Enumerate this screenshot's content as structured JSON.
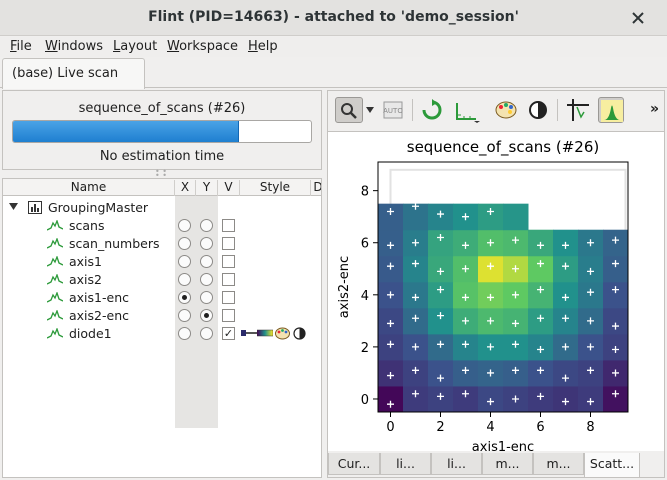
{
  "window": {
    "title": "Flint (PID=14663) - attached to 'demo_session'"
  },
  "menu": [
    {
      "label": "File",
      "u": "F",
      "rest": "ile"
    },
    {
      "label": "Windows",
      "u": "W",
      "rest": "indows"
    },
    {
      "label": "Layout",
      "u": "L",
      "rest": "ayout"
    },
    {
      "label": "Workspace",
      "u": "W",
      "rest": "orkspace"
    },
    {
      "label": "Help",
      "u": "H",
      "rest": "elp"
    }
  ],
  "main_tab": {
    "label": "(base) Live scan"
  },
  "progress": {
    "title": "sequence_of_scans (#26)",
    "fraction": 0.76,
    "estimation": "No estimation time"
  },
  "tree": {
    "columns": [
      "Name",
      "X",
      "Y",
      "V",
      "Style",
      "D"
    ],
    "root": "GroupingMaster",
    "items": [
      {
        "name": "scans",
        "x": false,
        "y": false,
        "v": false
      },
      {
        "name": "scan_numbers",
        "x": false,
        "y": false,
        "v": false
      },
      {
        "name": "axis1",
        "x": false,
        "y": false,
        "v": false
      },
      {
        "name": "axis2",
        "x": false,
        "y": false,
        "v": false
      },
      {
        "name": "axis1-enc",
        "x": true,
        "y": false,
        "v": false
      },
      {
        "name": "axis2-enc",
        "x": false,
        "y": true,
        "v": false
      },
      {
        "name": "diode1",
        "x": false,
        "y": false,
        "v": true
      }
    ]
  },
  "bottom_tabs": [
    "Cur...",
    "li...",
    "li...",
    "m...",
    "m...",
    "Scatt..."
  ],
  "bottom_tab_active": 5,
  "toolbar": {
    "more": "»",
    "auto_label": "AUTO"
  },
  "icons": [
    "zoom-icon",
    "reset-zoom-icon",
    "refresh-icon",
    "axes-icon",
    "palette-icon",
    "contrast-icon",
    "crosshair-icon",
    "peak-icon",
    "close-icon",
    "tree-node-icon",
    "curve-icon"
  ],
  "chart_data": {
    "type": "heatmap",
    "title": "sequence_of_scans (#26)",
    "xlabel": "axis1-enc",
    "ylabel": "axis2-enc",
    "xlim": [
      -0.5,
      9.5
    ],
    "ylim": [
      -0.5,
      9.1
    ],
    "xticks": [
      0,
      2,
      4,
      6,
      8
    ],
    "yticks": [
      0,
      2,
      4,
      6,
      8
    ],
    "cells": [
      [
        0.02,
        0.18,
        0.2,
        0.18,
        0.22,
        0.2,
        0.18,
        0.16,
        0.18,
        0.05
      ],
      [
        0.15,
        0.2,
        0.25,
        0.3,
        0.32,
        0.3,
        0.25,
        0.22,
        0.2,
        0.12
      ],
      [
        0.2,
        0.25,
        0.35,
        0.45,
        0.5,
        0.5,
        0.45,
        0.35,
        0.25,
        0.2
      ],
      [
        0.22,
        0.35,
        0.5,
        0.62,
        0.68,
        0.65,
        0.55,
        0.45,
        0.35,
        0.22
      ],
      [
        0.25,
        0.4,
        0.55,
        0.72,
        0.78,
        0.75,
        0.65,
        0.5,
        0.4,
        0.25
      ],
      [
        0.28,
        0.45,
        0.6,
        0.7,
        0.95,
        0.88,
        0.75,
        0.55,
        0.42,
        0.3
      ],
      [
        0.3,
        0.42,
        0.58,
        0.62,
        0.7,
        0.68,
        0.6,
        0.5,
        0.4,
        0.32
      ],
      [
        0.3,
        0.38,
        0.45,
        0.5,
        0.55,
        0.52,
        null,
        null,
        null,
        null
      ]
    ],
    "points": [
      [
        0,
        7.2
      ],
      [
        1,
        7.4
      ],
      [
        2,
        7.1
      ],
      [
        3,
        7.0
      ],
      [
        4,
        7.2
      ],
      [
        0,
        5.9
      ],
      [
        1,
        6.0
      ],
      [
        2,
        6.2
      ],
      [
        3,
        5.9
      ],
      [
        4,
        6.0
      ],
      [
        5,
        6.1
      ],
      [
        6,
        5.9
      ],
      [
        7,
        5.9
      ],
      [
        8,
        6.0
      ],
      [
        9,
        6.1
      ],
      [
        0,
        5.1
      ],
      [
        1,
        5.2
      ],
      [
        2,
        4.9
      ],
      [
        3,
        5.0
      ],
      [
        4,
        5.1
      ],
      [
        5,
        5.0
      ],
      [
        6,
        5.2
      ],
      [
        7,
        5.1
      ],
      [
        8,
        4.9
      ],
      [
        9,
        5.2
      ],
      [
        0,
        4.0
      ],
      [
        1,
        3.9
      ],
      [
        2,
        4.2
      ],
      [
        3,
        3.9
      ],
      [
        4,
        3.9
      ],
      [
        5,
        4.0
      ],
      [
        6,
        4.2
      ],
      [
        7,
        3.9
      ],
      [
        8,
        4.1
      ],
      [
        9,
        4.2
      ],
      [
        0,
        2.9
      ],
      [
        1,
        3.1
      ],
      [
        2,
        3.2
      ],
      [
        3,
        3.0
      ],
      [
        4,
        3.0
      ],
      [
        5,
        2.9
      ],
      [
        6,
        3.1
      ],
      [
        7,
        3.1
      ],
      [
        8,
        3.0
      ],
      [
        9,
        2.8
      ],
      [
        0,
        2.1
      ],
      [
        1,
        2.0
      ],
      [
        2,
        2.1
      ],
      [
        3,
        2.1
      ],
      [
        4,
        2.0
      ],
      [
        5,
        2.1
      ],
      [
        6,
        1.9
      ],
      [
        7,
        2.0
      ],
      [
        8,
        2.0
      ],
      [
        9,
        1.9
      ],
      [
        0,
        0.9
      ],
      [
        1,
        1.1
      ],
      [
        2,
        0.8
      ],
      [
        3,
        1.1
      ],
      [
        4,
        1.0
      ],
      [
        5,
        1.1
      ],
      [
        6,
        1.1
      ],
      [
        7,
        0.8
      ],
      [
        8,
        1.1
      ],
      [
        9,
        1.0
      ],
      [
        0,
        -0.2
      ],
      [
        1,
        0.2
      ],
      [
        2,
        0.1
      ],
      [
        3,
        0.2
      ],
      [
        4,
        -0.1
      ],
      [
        5,
        0.0
      ],
      [
        6,
        0.1
      ],
      [
        7,
        -0.1
      ],
      [
        8,
        -0.1
      ],
      [
        9,
        0.2
      ]
    ],
    "grid": false,
    "colormap": "viridis"
  }
}
